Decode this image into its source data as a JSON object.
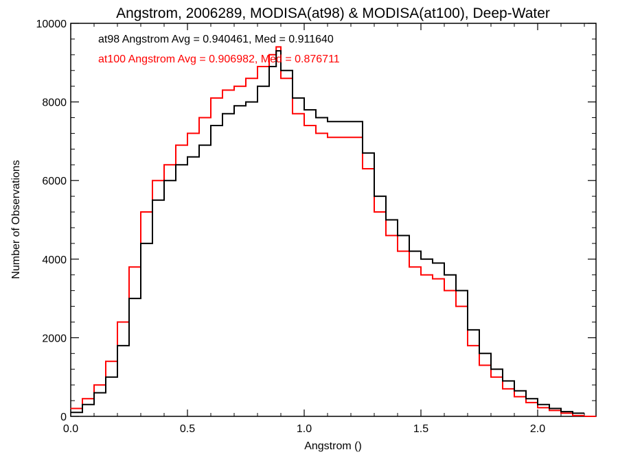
{
  "chart_data": {
    "type": "line",
    "title": "Angstrom, 2006289, MODISA(at98) & MODISA(at100), Deep-Water",
    "xlabel": "Angstrom ()",
    "ylabel": "Number of Observations",
    "xlim": [
      0.0,
      2.25
    ],
    "ylim": [
      0,
      10000
    ],
    "x_ticks": [
      "0.0",
      "0.5",
      "1.0",
      "1.5",
      "2.0"
    ],
    "x_tick_values": [
      0.0,
      0.5,
      1.0,
      1.5,
      2.0
    ],
    "y_ticks": [
      "0",
      "2000",
      "4000",
      "6000",
      "8000",
      "10000"
    ],
    "y_tick_values": [
      0,
      2000,
      4000,
      6000,
      8000,
      10000
    ],
    "grid": false,
    "step": true,
    "annotations": [
      {
        "text": "at98 Angstrom Avg = 0.940461, Med = 0.911640",
        "color": "#000000"
      },
      {
        "text": "at100 Angstrom Avg = 0.906982, Med = 0.876711",
        "color": "#ff0000"
      }
    ],
    "series": [
      {
        "color": "#000000",
        "x": [
          0.0,
          0.05,
          0.1,
          0.15,
          0.2,
          0.25,
          0.3,
          0.35,
          0.4,
          0.45,
          0.5,
          0.55,
          0.6,
          0.65,
          0.7,
          0.75,
          0.8,
          0.85,
          0.88,
          0.9,
          0.95,
          1.0,
          1.05,
          1.1,
          1.15,
          1.2,
          1.25,
          1.3,
          1.35,
          1.4,
          1.45,
          1.5,
          1.55,
          1.6,
          1.65,
          1.7,
          1.75,
          1.8,
          1.85,
          1.9,
          1.95,
          2.0,
          2.05,
          2.1,
          2.15
        ],
        "values": [
          100,
          300,
          600,
          1000,
          1800,
          3000,
          4400,
          5500,
          6000,
          6400,
          6600,
          6900,
          7400,
          7700,
          7900,
          8000,
          8400,
          8900,
          9300,
          8800,
          8100,
          7800,
          7600,
          7500,
          7500,
          7500,
          6700,
          5600,
          5000,
          4600,
          4200,
          4000,
          3900,
          3600,
          3200,
          2200,
          1600,
          1200,
          900,
          650,
          450,
          300,
          200,
          120,
          80
        ]
      },
      {
        "color": "#ff0000",
        "x": [
          0.0,
          0.05,
          0.1,
          0.15,
          0.2,
          0.25,
          0.3,
          0.35,
          0.4,
          0.45,
          0.5,
          0.55,
          0.6,
          0.65,
          0.7,
          0.75,
          0.8,
          0.85,
          0.88,
          0.9,
          0.95,
          1.0,
          1.05,
          1.1,
          1.15,
          1.2,
          1.25,
          1.3,
          1.35,
          1.4,
          1.45,
          1.5,
          1.55,
          1.6,
          1.65,
          1.7,
          1.75,
          1.8,
          1.85,
          1.9,
          1.95,
          2.0,
          2.05,
          2.1,
          2.15
        ],
        "values": [
          200,
          450,
          800,
          1400,
          2400,
          3800,
          5200,
          6000,
          6400,
          6900,
          7200,
          7600,
          8100,
          8300,
          8400,
          8600,
          8900,
          9200,
          9400,
          8600,
          7700,
          7400,
          7200,
          7100,
          7100,
          7100,
          6300,
          5200,
          4600,
          4200,
          3800,
          3600,
          3500,
          3200,
          2800,
          1800,
          1300,
          1000,
          700,
          500,
          350,
          220,
          150,
          80,
          20
        ]
      }
    ]
  }
}
